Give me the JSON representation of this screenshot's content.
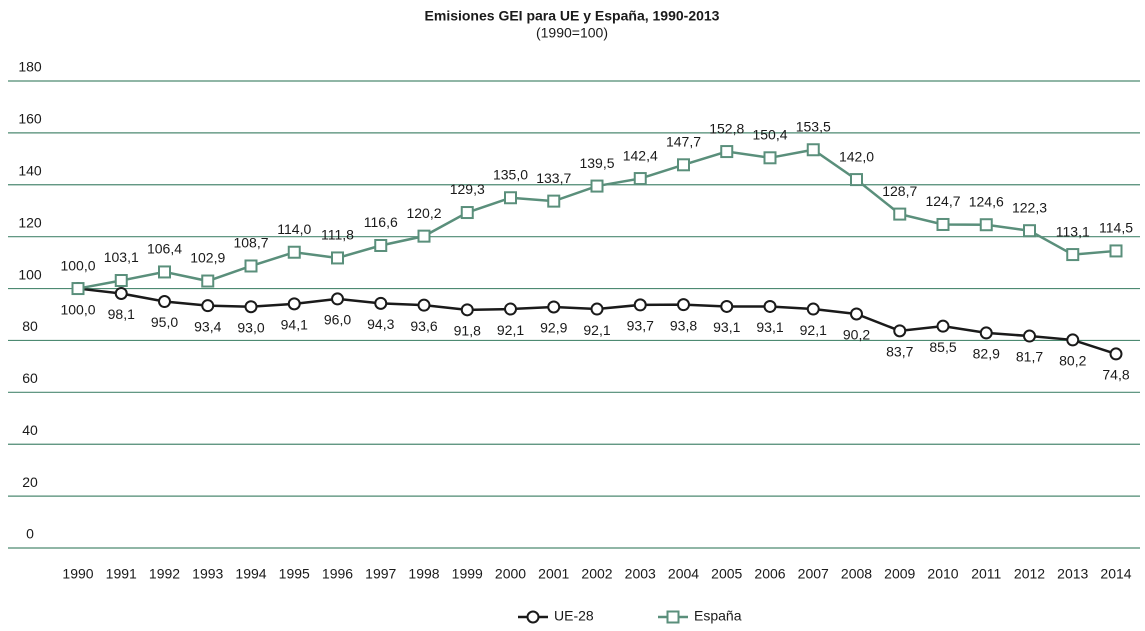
{
  "chart_data": {
    "type": "line",
    "title": "Emisiones GEI para UE y España, 1990-2013",
    "subtitle": "(1990=100)",
    "categories": [
      "1990",
      "1991",
      "1992",
      "1993",
      "1994",
      "1995",
      "1996",
      "1997",
      "1998",
      "1999",
      "2000",
      "2001",
      "2002",
      "2003",
      "2004",
      "2005",
      "2006",
      "2007",
      "2008",
      "2009",
      "2010",
      "2011",
      "2012",
      "2013",
      "2014"
    ],
    "series": [
      {
        "name": "UE-28",
        "color": "#1a1a1a",
        "marker": "circle",
        "values": [
          100.0,
          98.1,
          95.0,
          93.4,
          93.0,
          94.1,
          96.0,
          94.3,
          93.6,
          91.8,
          92.1,
          92.9,
          92.1,
          93.7,
          93.8,
          93.1,
          93.1,
          92.1,
          90.2,
          83.7,
          85.5,
          82.9,
          81.7,
          80.2,
          74.8
        ],
        "value_labels": [
          "100,0",
          "98,1",
          "95,0",
          "93,4",
          "93,0",
          "94,1",
          "96,0",
          "94,3",
          "93,6",
          "91,8",
          "92,1",
          "92,9",
          "92,1",
          "93,7",
          "93,8",
          "93,1",
          "93,1",
          "92,1",
          "90,2",
          "83,7",
          "85,5",
          "82,9",
          "81,7",
          "80,2",
          "74,8"
        ]
      },
      {
        "name": "España",
        "color": "#5a8f7b",
        "marker": "square",
        "values": [
          100.0,
          103.1,
          106.4,
          102.9,
          108.7,
          114.0,
          111.8,
          116.6,
          120.2,
          129.3,
          135.0,
          133.7,
          139.5,
          142.4,
          147.7,
          152.8,
          150.4,
          153.5,
          142.0,
          128.7,
          124.7,
          124.6,
          122.3,
          113.1,
          114.5
        ],
        "value_labels": [
          "100,0",
          "103,1",
          "106,4",
          "102,9",
          "108,7",
          "114,0",
          "111,8",
          "116,6",
          "120,2",
          "129,3",
          "135,0",
          "133,7",
          "139,5",
          "142,4",
          "147,7",
          "152,8",
          "150,4",
          "153,5",
          "142,0",
          "128,7",
          "124,7",
          "124,6",
          "122,3",
          "113,1",
          "114,5"
        ]
      }
    ],
    "ylim": [
      0,
      180
    ],
    "yticks": [
      0,
      20,
      40,
      60,
      80,
      100,
      120,
      140,
      160,
      180
    ],
    "grid": true,
    "legend": "bottom"
  }
}
